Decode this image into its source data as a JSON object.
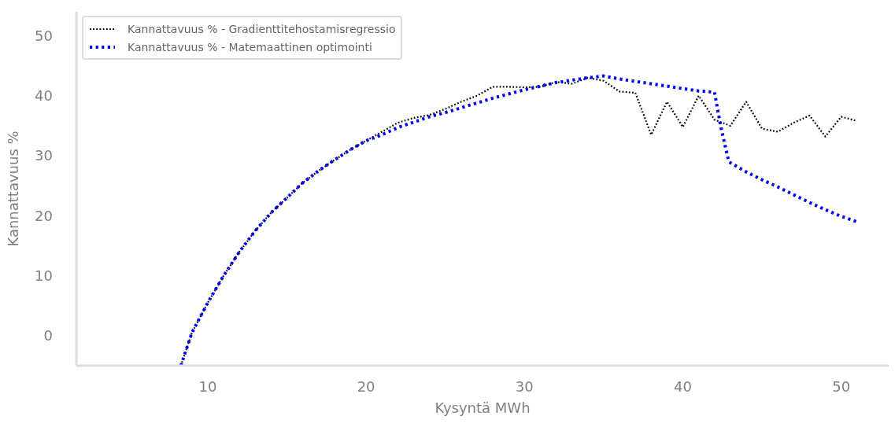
{
  "chart_data": {
    "type": "line",
    "xlabel": "Kysyntä MWh",
    "ylabel": "Kannattavuus %",
    "xlim": [
      1.7,
      53
    ],
    "ylim": [
      -5,
      54
    ],
    "xticks": [
      10,
      20,
      30,
      40,
      50
    ],
    "yticks": [
      0,
      10,
      20,
      30,
      40,
      50
    ],
    "grid": false,
    "legend": "top left",
    "marker": "none",
    "series": [
      {
        "name": "Kannattavuus % - Gradienttitehostamisregressio",
        "color": "#000000",
        "line_style": "dotted",
        "x": [
          8.3,
          9,
          10,
          11,
          12,
          13,
          14,
          15,
          16,
          17,
          18,
          19,
          20,
          21,
          22,
          23,
          24,
          25,
          26,
          27,
          28,
          29,
          30,
          31,
          32,
          33,
          34,
          35,
          36,
          37,
          38,
          39,
          40,
          41,
          42,
          43,
          44,
          45,
          46,
          47,
          48,
          49,
          50,
          51
        ],
        "values": [
          -5,
          0.5,
          5.5,
          10,
          14,
          17.5,
          20.5,
          23,
          25.5,
          27.5,
          29.3,
          31,
          32.5,
          34,
          35.5,
          36.3,
          36.8,
          37.8,
          39,
          40,
          41.5,
          41.5,
          41.4,
          41.5,
          42.3,
          42,
          43,
          42.5,
          40.7,
          40.5,
          33.5,
          39,
          34.8,
          40,
          36,
          35,
          39,
          34.5,
          34,
          35.5,
          36.7,
          33.2,
          36.5,
          35.8
        ]
      },
      {
        "name": "Kannattavuus % - Matemaattinen optimointi",
        "color": "#0000ff",
        "line_style": "dotted",
        "x": [
          8.3,
          9,
          10,
          11,
          12,
          13,
          14,
          15,
          16,
          17,
          18,
          19,
          20,
          21,
          22,
          23,
          24,
          25,
          26,
          27,
          28,
          29,
          30,
          31,
          32,
          33,
          34,
          35,
          36,
          37,
          38,
          39,
          40,
          41,
          42,
          42.4,
          42.9,
          44,
          45,
          46,
          47,
          48,
          49,
          50,
          51.1
        ],
        "values": [
          -5,
          0.5,
          5.5,
          10,
          14,
          17.5,
          20.5,
          23,
          25.5,
          27.5,
          29.3,
          31,
          32.5,
          33.5,
          34.7,
          35.6,
          36.5,
          37.2,
          38,
          38.8,
          39.6,
          40.3,
          41,
          41.6,
          42.2,
          42.6,
          43,
          43.3,
          42.8,
          42.4,
          42,
          41.6,
          41.2,
          40.8,
          40.6,
          34.8,
          29,
          27.3,
          26,
          24.8,
          23.5,
          22.2,
          21,
          19.9,
          18.9
        ]
      }
    ]
  }
}
